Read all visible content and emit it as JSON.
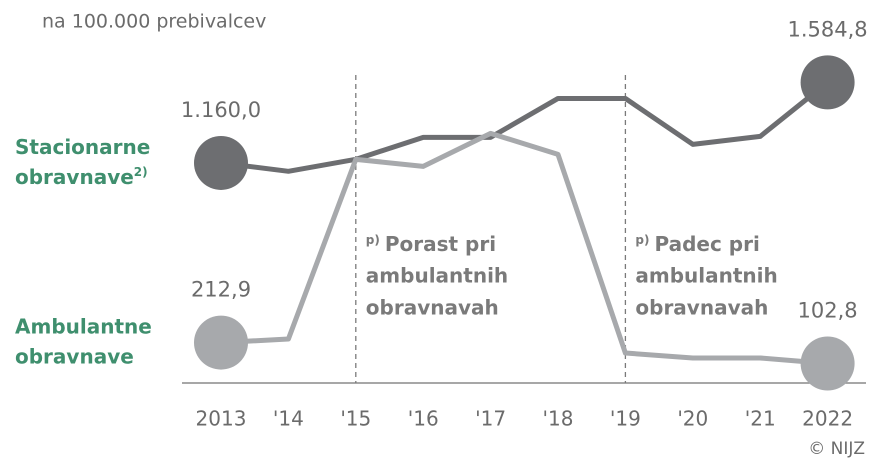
{
  "chart_data": {
    "type": "line",
    "subtitle": "na 100.000 prebivalcev",
    "source": "© NIJZ",
    "categories": [
      "2013",
      "'14",
      "'15",
      "'16",
      "'17",
      "'18",
      "'19",
      "'20",
      "'21",
      "2022"
    ],
    "ylim": [
      0,
      1650
    ],
    "series": [
      {
        "name": "Stacionarne obravnave",
        "note": "2)",
        "color": "#6d6e71",
        "values": [
          1160.0,
          1116,
          1179,
          1295,
          1295,
          1500,
          1500,
          1258,
          1300,
          1584.8
        ],
        "value_labels": [
          "1.160,0",
          null,
          null,
          null,
          null,
          null,
          null,
          null,
          null,
          "1.584,8"
        ]
      },
      {
        "name": "Ambulantne obravnave",
        "color": "#a7a9ac",
        "values": [
          212.9,
          232,
          1179,
          1142,
          1316,
          1205,
          158,
          132,
          132,
          102.8
        ],
        "value_labels": [
          "212,9",
          null,
          null,
          null,
          null,
          null,
          null,
          null,
          null,
          "102,8"
        ]
      }
    ],
    "annotations": [
      {
        "x": "'15",
        "marker": "p)",
        "lines": [
          "Porast pri",
          "ambulantnih",
          "obravnavah"
        ]
      },
      {
        "x": "'19",
        "marker": "p)",
        "lines": [
          "Padec pri",
          "ambulantnih",
          "obravnavah"
        ]
      }
    ]
  }
}
